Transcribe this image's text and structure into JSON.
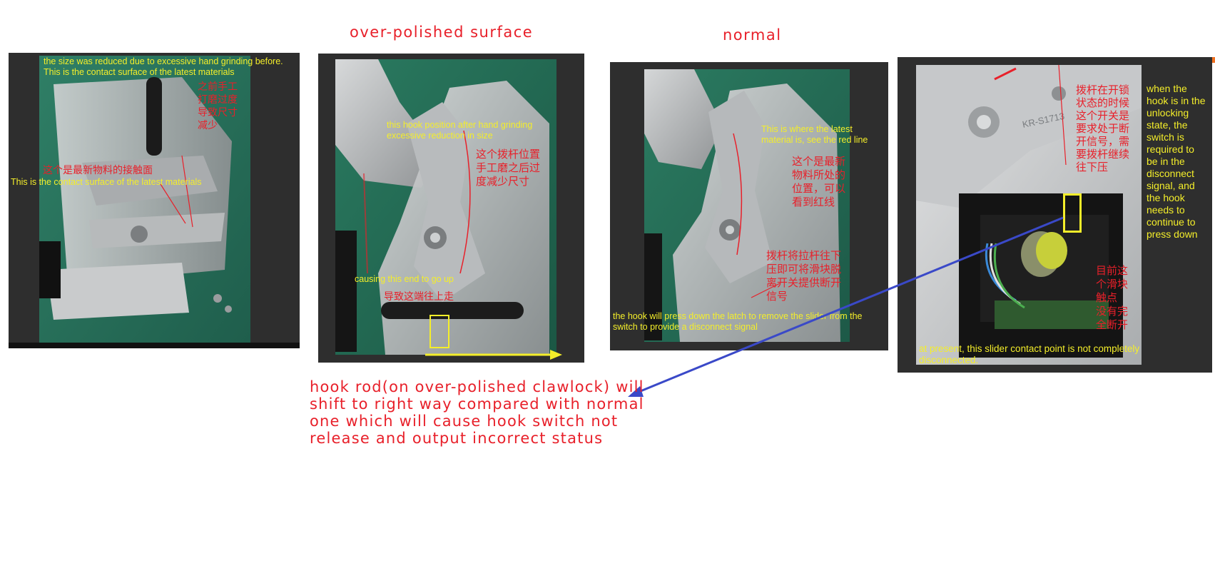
{
  "headings": {
    "over_polished": "over-polished surface",
    "normal": "normal"
  },
  "panel1": {
    "note_en_top": "the size was reduced due to excessive hand grinding before.\nThis is the contact surface of the latest materials",
    "note_cn_top": "之前手工\n打磨过度\n导致尺寸\n减少",
    "note_cn_mid": "这个是最新物料的接触面",
    "note_en_mid": "This is the contact surface of the latest materials"
  },
  "panel2": {
    "note_en_top": "this hook position after hand grinding\nexcessive reduction in size",
    "note_cn_top": "这个拨杆位置\n手工磨之后过\n度减少尺寸",
    "note_en_bottom": "causing this end to go up",
    "note_cn_bottom": "导致这端往上走"
  },
  "panel3": {
    "note_en_top": "This is where the latest\nmaterial is, see the red line",
    "note_cn_top": "这个是最新\n物料所处的\n位置，可以\n看到红线",
    "note_cn_bottom": "拨杆将拉杆往下\n压即可将滑块脱\n离开关提供断开\n信号",
    "note_en_bottom": "the hook will press down the latch to remove the slider from the\nswitch to provide a disconnect signal"
  },
  "panel4": {
    "note_cn_top": "拨杆在开锁\n状态的时候\n这个开关是\n要求处于断\n开信号，需\n要拨杆继续\n往下压",
    "note_en_side": "when the\nhook is in the\nunlocking\nstate, the\nswitch is\nrequired to\nbe in the\ndisconnect\nsignal, and\nthe hook\nneeds to\ncontinue to\npress down",
    "note_cn_bottom": "目前这\n个滑块\n触点\n没有完\n全断开",
    "note_en_bottom": "at present, this slider contact point is not completely\ndisconnected.",
    "part_marking": "KR-S1713"
  },
  "caption": "hook rod(on over-polished clawlock) will shift to right way compared with normal one which will cause hook switch not release and output incorrect status",
  "colors": {
    "annotation_red": "#e8202a",
    "annotation_yellow": "#f4ee2a",
    "arrow_blue": "#3a49c8",
    "panel_dark": "#2e2e2e"
  }
}
